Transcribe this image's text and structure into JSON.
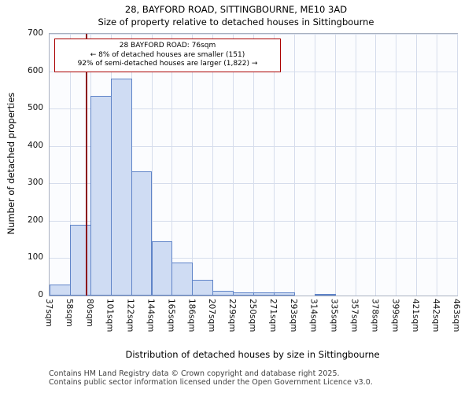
{
  "title": "28, BAYFORD ROAD, SITTINGBOURNE, ME10 3AD",
  "subtitle": "Size of property relative to detached houses in Sittingbourne",
  "chart_data": {
    "type": "bar",
    "title": "28, BAYFORD ROAD, SITTINGBOURNE, ME10 3AD",
    "subtitle": "Size of property relative to detached houses in Sittingbourne",
    "xlabel": "Distribution of detached houses by size in Sittingbourne",
    "ylabel": "Number of detached properties",
    "ylim": [
      0,
      700
    ],
    "yticks": [
      0,
      100,
      200,
      300,
      400,
      500,
      600,
      700
    ],
    "bin_edges": [
      37,
      58,
      80,
      101,
      122,
      144,
      165,
      186,
      207,
      229,
      250,
      271,
      293,
      314,
      335,
      357,
      378,
      399,
      421,
      442,
      463
    ],
    "bin_labels": [
      "37sqm",
      "58sqm",
      "80sqm",
      "101sqm",
      "122sqm",
      "144sqm",
      "165sqm",
      "186sqm",
      "207sqm",
      "229sqm",
      "250sqm",
      "271sqm",
      "293sqm",
      "314sqm",
      "335sqm",
      "357sqm",
      "378sqm",
      "399sqm",
      "421sqm",
      "442sqm",
      "463sqm"
    ],
    "values": [
      30,
      190,
      535,
      580,
      332,
      145,
      88,
      42,
      12,
      8,
      8,
      8,
      0,
      5,
      0,
      0,
      0,
      0,
      0,
      0
    ],
    "grid": true,
    "marker": {
      "value_sqm": 76
    },
    "annotation": {
      "line1": "28 BAYFORD ROAD: 76sqm",
      "line2": "← 8% of detached houses are smaller (151)",
      "line3": "92% of semi-detached houses are larger (1,822) →"
    },
    "colors": {
      "bar_fill": "#cfdcf3",
      "bar_border": "#5f84c8",
      "marker_line": "#8b0014",
      "annotation_border": "#aa0000",
      "grid": "#d6ddec"
    }
  },
  "footer": {
    "line1": "Contains HM Land Registry data © Crown copyright and database right 2025.",
    "line2": "Contains public sector information licensed under the Open Government Licence v3.0."
  }
}
